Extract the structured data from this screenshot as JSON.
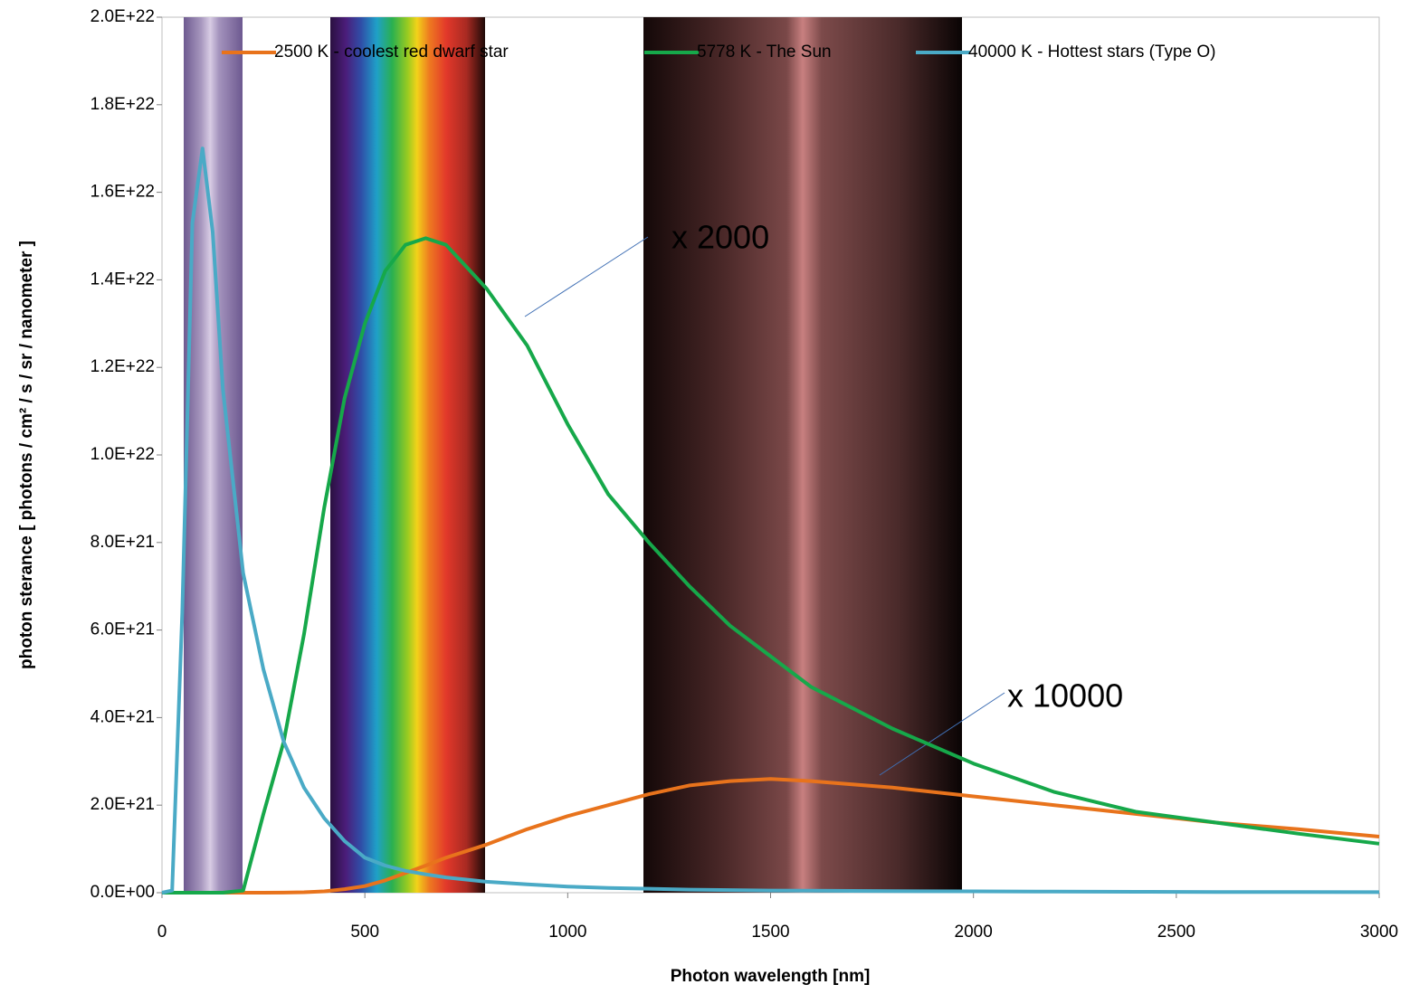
{
  "chart_data": {
    "type": "line",
    "xlabel": "Photon wavelength [nm]",
    "ylabel": "photon sterance [ photons / cm² / s / sr / nanometer ]",
    "x": [
      0,
      25,
      50,
      75,
      100,
      125,
      150,
      200,
      250,
      300,
      350,
      400,
      450,
      500,
      550,
      600,
      650,
      700,
      800,
      900,
      1000,
      1100,
      1200,
      1300,
      1400,
      1500,
      1600,
      1800,
      2000,
      2200,
      2400,
      2600,
      2800,
      3000
    ],
    "series": [
      {
        "name": "2500 K - coolest red dwarf star",
        "color": "#e8731c",
        "values": [
          0,
          0,
          0,
          0,
          0,
          0,
          0,
          0,
          0,
          2e+18,
          1e+19,
          3e+19,
          8e+19,
          1.5e+20,
          2.8e+20,
          4.5e+20,
          6.2e+20,
          8e+20,
          1.1e+21,
          1.45e+21,
          1.75e+21,
          2e+21,
          2.25e+21,
          2.45e+21,
          2.55e+21,
          2.6e+21,
          2.55e+21,
          2.4e+21,
          2.2e+21,
          2e+21,
          1.8e+21,
          1.6e+21,
          1.45e+21,
          1.28e+21
        ]
      },
      {
        "name": "5778 K - The Sun",
        "color": "#16a84a",
        "values": [
          0,
          0,
          0,
          0,
          0,
          0,
          0,
          5e+19,
          1.8e+21,
          3.45e+21,
          5.9e+21,
          8.8e+21,
          1.13e+22,
          1.3e+22,
          1.42e+22,
          1.48e+22,
          1.495e+22,
          1.48e+22,
          1.38e+22,
          1.25e+22,
          1.07e+22,
          9.1e+21,
          8e+21,
          7e+21,
          6.1e+21,
          5.4e+21,
          4.7e+21,
          3.75e+21,
          2.95e+21,
          2.3e+21,
          1.85e+21,
          1.6e+21,
          1.35e+21,
          1.12e+21
        ]
      },
      {
        "name": "40000 K - Hottest stars (Type O)",
        "color": "#4aaac6",
        "values": [
          0,
          5e+19,
          6.4e+21,
          1.53e+22,
          1.7e+22,
          1.51e+22,
          1.15e+22,
          7.3e+21,
          5.1e+21,
          3.45e+21,
          2.4e+21,
          1.7e+21,
          1.18e+21,
          8e+20,
          6.2e+20,
          5e+20,
          4.2e+20,
          3.5e+20,
          2.5e+20,
          1.9e+20,
          1.4e+20,
          1.1e+20,
          9e+19,
          7e+19,
          6e+19,
          5e+19,
          4.5e+19,
          3.5e+19,
          3e+19,
          2.5e+19,
          2e+19,
          1.7e+19,
          1.5e+19,
          1.3e+19
        ]
      }
    ],
    "xlim": [
      0,
      3000
    ],
    "xticks": [
      0,
      500,
      1000,
      1500,
      2000,
      2500,
      3000
    ],
    "ylim": [
      0,
      2e+22
    ],
    "yticks": [
      {
        "value": 0,
        "label": "0.0E+00"
      },
      {
        "value": 2e+21,
        "label": "2.0E+21"
      },
      {
        "value": 4e+21,
        "label": "4.0E+21"
      },
      {
        "value": 6e+21,
        "label": "6.0E+21"
      },
      {
        "value": 8e+21,
        "label": "8.0E+21"
      },
      {
        "value": 1e+22,
        "label": "1.0E+22"
      },
      {
        "value": 1.2e+22,
        "label": "1.2E+22"
      },
      {
        "value": 1.4e+22,
        "label": "1.4E+22"
      },
      {
        "value": 1.6e+22,
        "label": "1.6E+22"
      },
      {
        "value": 1.8e+22,
        "label": "1.8E+22"
      },
      {
        "value": 2e+22,
        "label": "2.0E+22"
      }
    ],
    "legend": "top",
    "annotations": [
      {
        "text": "x 2000"
      },
      {
        "text": "x 10000"
      }
    ]
  }
}
